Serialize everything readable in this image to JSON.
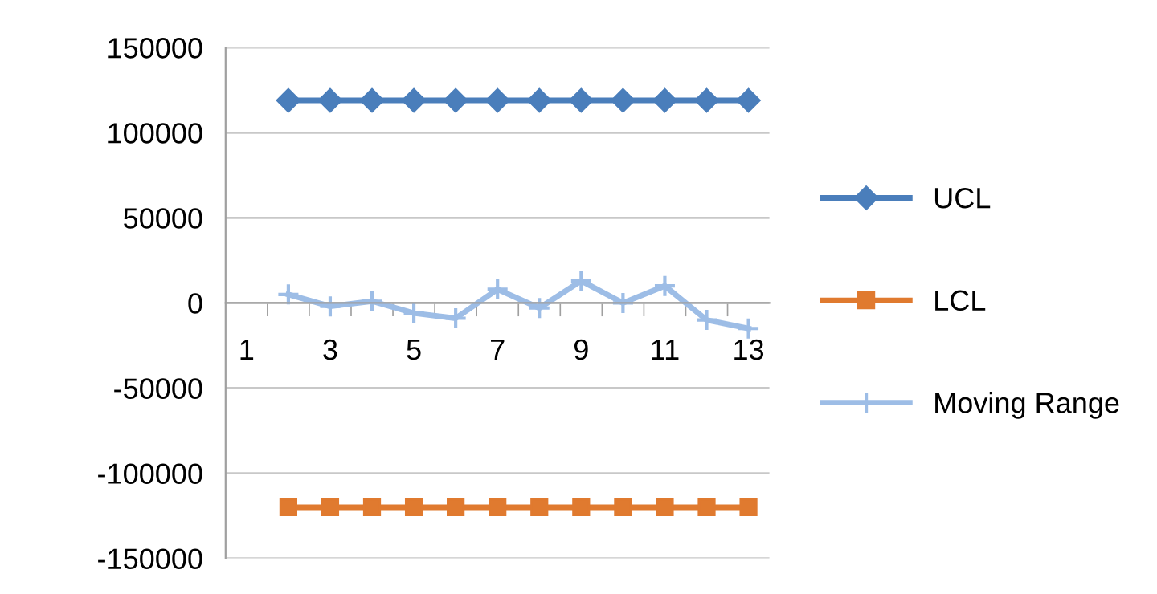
{
  "chart_data": {
    "type": "line",
    "categories": [
      "1",
      null,
      "3",
      null,
      "5",
      null,
      "7",
      null,
      "9",
      null,
      "11",
      null,
      "13"
    ],
    "series": [
      {
        "name": "UCL",
        "color": "#4a7ebb",
        "marker": "diamond",
        "values": [
          null,
          119000,
          119000,
          119000,
          119000,
          119000,
          119000,
          119000,
          119000,
          119000,
          119000,
          119000,
          119000
        ]
      },
      {
        "name": "LCL",
        "color": "#e07a2f",
        "marker": "square",
        "values": [
          null,
          -120000,
          -120000,
          -120000,
          -120000,
          -120000,
          -120000,
          -120000,
          -120000,
          -120000,
          -120000,
          -120000,
          -120000
        ]
      },
      {
        "name": "Moving Range",
        "color": "#9dbde6",
        "marker": "cross",
        "values": [
          null,
          5000,
          -2000,
          1000,
          -6000,
          -9000,
          8000,
          -3000,
          13000,
          0,
          10000,
          -10000,
          -15000
        ]
      }
    ],
    "ylim": [
      -150000,
      150000
    ],
    "yticks": [
      -150000,
      -100000,
      -50000,
      0,
      50000,
      100000,
      150000
    ],
    "grid": "y",
    "legend": "right",
    "line_style": "solid"
  }
}
